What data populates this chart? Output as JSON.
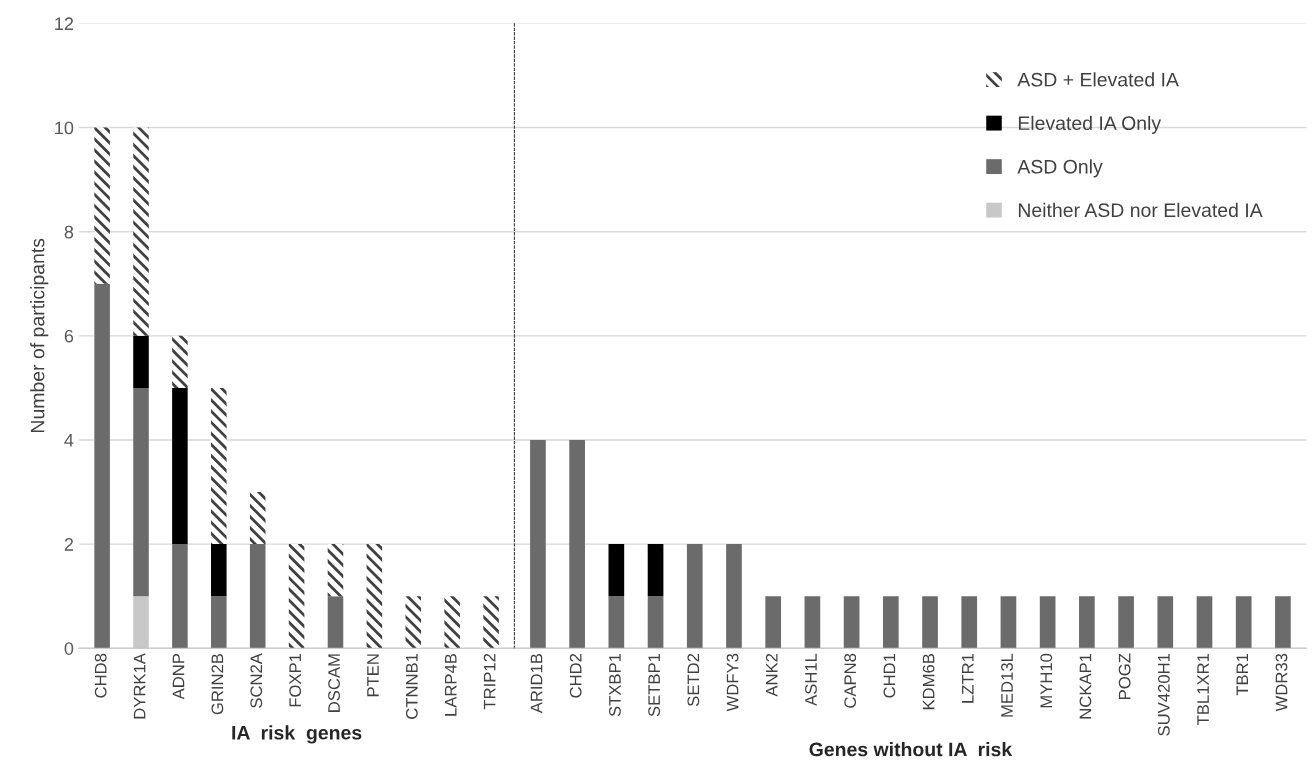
{
  "chart_data": [
    {
      "type": "bar",
      "stacked": true,
      "xlabel": "IA  risk  genes",
      "ylabel": "Number of participants",
      "ylim": [
        0,
        12
      ],
      "yticks": [
        0,
        2,
        4,
        6,
        8,
        10,
        12
      ],
      "grid": "y",
      "legend": "top right",
      "categories": [
        "CHD8",
        "DYRK1A",
        "ADNP",
        "GRIN2B",
        "SCN2A",
        "FOXP1",
        "DSCAM",
        "PTEN",
        "CTNNB1",
        "LARP4B",
        "TRIP12"
      ],
      "series": [
        {
          "name": "Neither ASD nor Elevated IA",
          "color": "#c8c8c8",
          "values": [
            0,
            1,
            0,
            0,
            0,
            0,
            0,
            0,
            0,
            0,
            0
          ]
        },
        {
          "name": "ASD Only",
          "color": "#6b6b6b",
          "values": [
            7,
            4,
            2,
            1,
            2,
            0,
            1,
            0,
            0,
            0,
            0
          ]
        },
        {
          "name": "Elevated IA Only",
          "color": "#000000",
          "values": [
            0,
            1,
            3,
            1,
            0,
            0,
            0,
            0,
            0,
            0,
            0
          ]
        },
        {
          "name": "ASD + Elevated IA",
          "color": "#404040",
          "values": [
            3,
            4,
            1,
            3,
            1,
            2,
            1,
            2,
            1,
            1,
            1
          ]
        }
      ]
    },
    {
      "type": "bar",
      "stacked": true,
      "xlabel": "Genes without IA  risk",
      "ylim": [
        0,
        12
      ],
      "yticks": [
        0,
        2,
        4,
        6,
        8,
        10,
        12
      ],
      "grid": "y",
      "tick_labels": "x",
      "categories": [
        "ARID1B",
        "CHD2",
        "STXBP1",
        "SETBP1",
        "SETD2",
        "WDFY3",
        "ANK2",
        "ASH1L",
        "CAPN8",
        "CHD1",
        "KDM6B",
        "LZTR1",
        "MED13L",
        "MYH10",
        "NCKAP1",
        "POGZ",
        "SUV420H1",
        "TBL1XR1",
        "TBR1",
        "WDR33"
      ],
      "series": [
        {
          "color": "#c8c8c8",
          "values": [
            0,
            0,
            0,
            0,
            0,
            0,
            0,
            0,
            0,
            0,
            0,
            0,
            0,
            0,
            0,
            0,
            0,
            0,
            0,
            0
          ]
        },
        {
          "color": "#6b6b6b",
          "values": [
            4,
            4,
            1,
            1,
            2,
            2,
            1,
            1,
            1,
            1,
            1,
            1,
            1,
            1,
            1,
            1,
            1,
            1,
            1,
            1
          ]
        },
        {
          "color": "#000000",
          "values": [
            0,
            0,
            1,
            1,
            0,
            0,
            0,
            0,
            0,
            0,
            0,
            0,
            0,
            0,
            0,
            0,
            0,
            0,
            0,
            0
          ]
        },
        {
          "color": "#404040",
          "values": [
            0,
            0,
            0,
            0,
            0,
            0,
            0,
            0,
            0,
            0,
            0,
            0,
            0,
            0,
            0,
            0,
            0,
            0,
            0,
            0
          ]
        }
      ]
    }
  ]
}
